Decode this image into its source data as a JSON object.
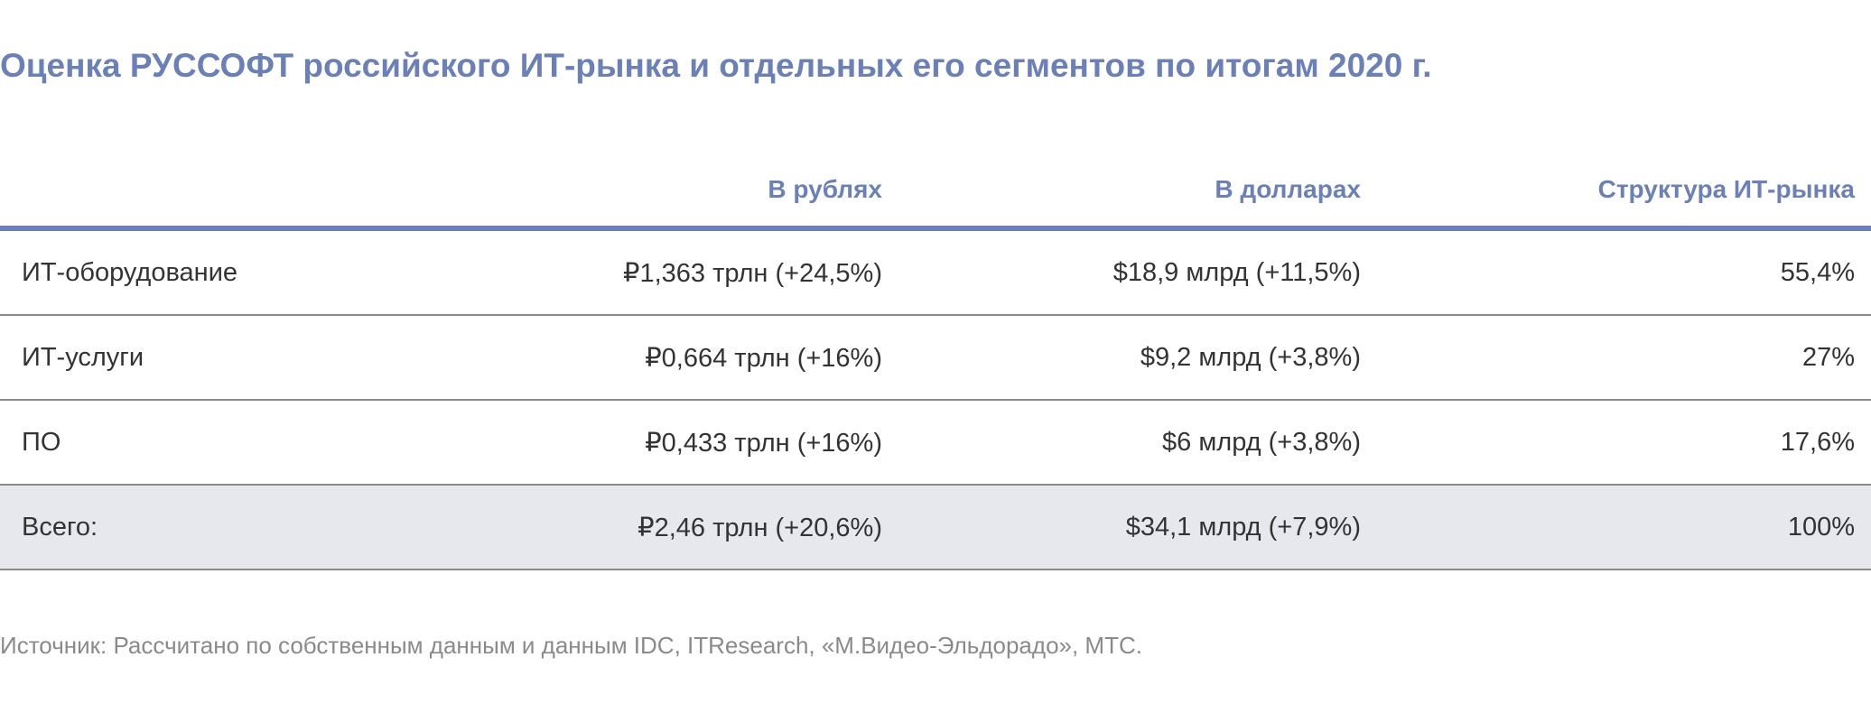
{
  "title": "Оценка РУССОФТ российского ИТ-рынка и отдельных его сегментов по итогам 2020 г.",
  "table": {
    "headers": [
      "",
      "В рублях",
      "В долларах",
      "Структура ИТ-рынка"
    ],
    "rows": [
      [
        "ИТ-оборудование",
        "₽1,363 трлн (+24,5%)",
        "$18,9 млрд (+11,5%)",
        "55,4%"
      ],
      [
        "ИТ-услуги",
        "₽0,664 трлн (+16%)",
        "$9,2 млрд (+3,8%)",
        "27%"
      ],
      [
        "ПО",
        "₽0,433 трлн (+16%)",
        "$6 млрд (+3,8%)",
        "17,6%"
      ]
    ],
    "total": [
      "Всего:",
      "₽2,46 трлн (+20,6%)",
      "$34,1 млрд (+7,9%)",
      "100%"
    ]
  },
  "source": "Источник: Рассчитано по собственным данным и данным IDC, ITResearch, «М.Видео-Эльдорадо», МТС.",
  "colors": {
    "accent": "#6b80b7",
    "text": "#333333",
    "muted": "#8a8a8a",
    "total_row_bg": "#e7e8ed"
  }
}
